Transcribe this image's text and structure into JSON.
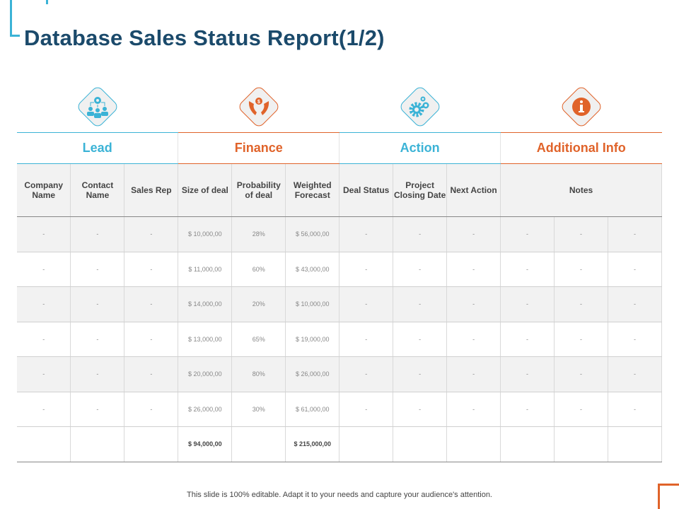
{
  "title": "Database Sales Status Report(1/2)",
  "colors": {
    "blue": "#3bb3d6",
    "orange": "#e0632a",
    "title": "#1b4a6b"
  },
  "groups": [
    {
      "label": "Lead",
      "icon": "team-gear-icon",
      "color": "blue"
    },
    {
      "label": "Finance",
      "icon": "hands-dollar-icon",
      "color": "orange"
    },
    {
      "label": "Action",
      "icon": "gears-icon",
      "color": "blue"
    },
    {
      "label": "Additional Info",
      "icon": "info-icon",
      "color": "orange"
    }
  ],
  "columns": [
    "Company Name",
    "Contact Name",
    "Sales Rep",
    "Size of deal",
    "Probability of deal",
    "Weighted Forecast",
    "Deal Status",
    "Project Closing Date",
    "Next Action",
    "Notes"
  ],
  "rows": [
    {
      "size": "$ 10,000,00",
      "prob": "28%",
      "forecast": "$ 56,000,00"
    },
    {
      "size": "$ 11,000,00",
      "prob": "60%",
      "forecast": "$ 43,000,00"
    },
    {
      "size": "$ 14,000,00",
      "prob": "20%",
      "forecast": "$ 10,000,00"
    },
    {
      "size": "$ 13,000,00",
      "prob": "65%",
      "forecast": "$ 19,000,00"
    },
    {
      "size": "$ 20,000,00",
      "prob": "80%",
      "forecast": "$ 26,000,00"
    },
    {
      "size": "$ 26,000,00",
      "prob": "30%",
      "forecast": "$ 61,000,00"
    }
  ],
  "placeholder": "-",
  "totals": {
    "size": "$ 94,000,00",
    "forecast": "$ 215,000,00"
  },
  "footer": "This slide is 100% editable. Adapt it to your needs and capture your audience's attention."
}
